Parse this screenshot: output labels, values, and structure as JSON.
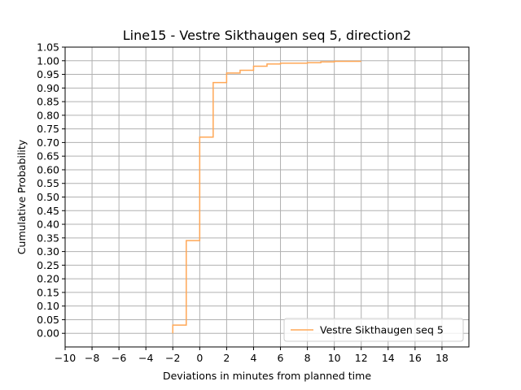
{
  "chart_data": {
    "type": "line",
    "step": true,
    "title": "Line15 - Vestre Sikthaugen seq 5, direction2",
    "xlabel": "Deviations in minutes from planned time",
    "ylabel": "Cumulative Probability",
    "xlim": [
      -10,
      20
    ],
    "ylim": [
      -0.05,
      1.05
    ],
    "xticks": [
      -10,
      -8,
      -6,
      -4,
      -2,
      0,
      2,
      4,
      6,
      8,
      10,
      12,
      14,
      16,
      18
    ],
    "xtick_labels": [
      "−10",
      "−8",
      "−6",
      "−4",
      "−2",
      "0",
      "2",
      "4",
      "6",
      "8",
      "10",
      "12",
      "14",
      "16",
      "18"
    ],
    "yticks": [
      0.0,
      0.05,
      0.1,
      0.15,
      0.2,
      0.25,
      0.3,
      0.35,
      0.4,
      0.45,
      0.5,
      0.55,
      0.6,
      0.65,
      0.7,
      0.75,
      0.8,
      0.85,
      0.9,
      0.95,
      1.0,
      1.05
    ],
    "ytick_labels": [
      "0.00",
      "0.05",
      "0.10",
      "0.15",
      "0.20",
      "0.25",
      "0.30",
      "0.35",
      "0.40",
      "0.45",
      "0.50",
      "0.55",
      "0.60",
      "0.65",
      "0.70",
      "0.75",
      "0.80",
      "0.85",
      "0.90",
      "0.95",
      "1.00",
      "1.05"
    ],
    "grid": true,
    "legend_position": "lower-right",
    "series": [
      {
        "name": "Vestre Sikthaugen seq 5",
        "color": "#ffa756",
        "x": [
          -2,
          -2,
          -1,
          0,
          1,
          2,
          3,
          4,
          5,
          6,
          8,
          9,
          10,
          12
        ],
        "y": [
          0.0,
          0.03,
          0.34,
          0.72,
          0.92,
          0.955,
          0.965,
          0.98,
          0.988,
          0.991,
          0.993,
          0.996,
          0.998,
          0.998
        ]
      }
    ]
  }
}
